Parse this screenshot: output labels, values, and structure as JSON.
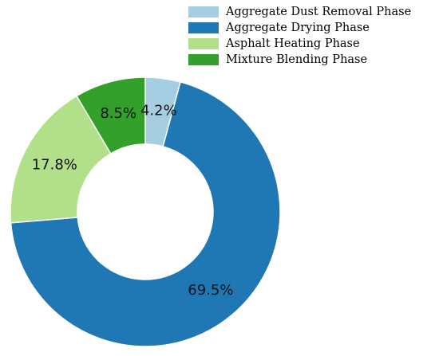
{
  "chart_data": {
    "type": "pie",
    "donut": true,
    "title": "",
    "categories": [
      "Aggregate Dust Removal Phase",
      "Aggregate Drying Phase",
      "Asphalt Heating Phase",
      "Mixture Blending Phase"
    ],
    "values": [
      4.2,
      69.5,
      17.8,
      8.5
    ],
    "labels": [
      "4.2%",
      "69.5%",
      "17.8%",
      "8.5%"
    ],
    "colors": [
      "#a6cee3",
      "#1f78b4",
      "#b2df8a",
      "#33a02c"
    ],
    "start": "12 o'clock",
    "direction": "clockwise",
    "legend": {
      "position": "top-right"
    }
  }
}
